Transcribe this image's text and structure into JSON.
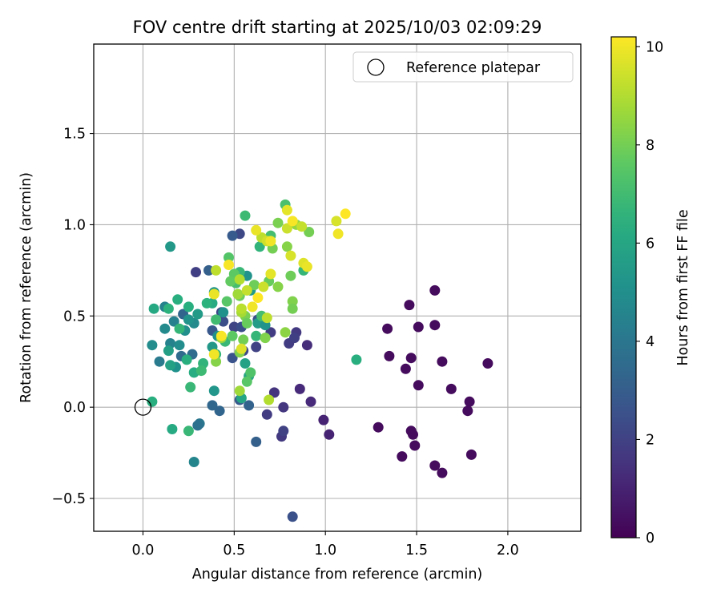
{
  "chart_data": {
    "type": "scatter",
    "title": "FOV centre drift starting at 2025/10/03 02:09:29",
    "xlabel": "Angular distance from reference (arcmin)",
    "ylabel": "Rotation from reference (arcmin)",
    "xlim": [
      -0.27,
      2.4
    ],
    "ylim": [
      -0.68,
      1.99
    ],
    "xticks": [
      0.0,
      0.5,
      1.0,
      1.5,
      2.0
    ],
    "xtick_labels": [
      "0.0",
      "0.5",
      "1.0",
      "1.5",
      "2.0"
    ],
    "yticks": [
      -0.5,
      0.0,
      0.5,
      1.0,
      1.5
    ],
    "ytick_labels": [
      "−0.5",
      "0.0",
      "0.5",
      "1.0",
      "1.5"
    ],
    "grid": true,
    "legend": {
      "position": "top-right",
      "entries": [
        "Reference platepar"
      ]
    },
    "reference_point": {
      "x": 0.0,
      "y": 0.0,
      "label": "Reference platepar"
    },
    "colorbar": {
      "label": "Hours from first FF file",
      "min": 0,
      "max": 10.2,
      "ticks": [
        0,
        2,
        4,
        6,
        8,
        10
      ],
      "tick_labels": [
        "0",
        "2",
        "4",
        "6",
        "8",
        "10"
      ],
      "colormap": [
        "#440154",
        "#472d7b",
        "#3b528b",
        "#2c728e",
        "#21918c",
        "#28ae80",
        "#5ec962",
        "#addc30",
        "#fde725"
      ]
    },
    "points": [
      {
        "x": 1.6,
        "y": 0.64,
        "c": 0.3
      },
      {
        "x": 1.46,
        "y": 0.56,
        "c": 0.3
      },
      {
        "x": 1.34,
        "y": 0.43,
        "c": 0.3
      },
      {
        "x": 1.51,
        "y": 0.44,
        "c": 0.3
      },
      {
        "x": 1.6,
        "y": 0.45,
        "c": 0.3
      },
      {
        "x": 1.35,
        "y": 0.28,
        "c": 0.3
      },
      {
        "x": 1.47,
        "y": 0.27,
        "c": 0.3
      },
      {
        "x": 1.44,
        "y": 0.21,
        "c": 0.3
      },
      {
        "x": 1.64,
        "y": 0.25,
        "c": 0.3
      },
      {
        "x": 1.89,
        "y": 0.24,
        "c": 0.3
      },
      {
        "x": 1.51,
        "y": 0.12,
        "c": 0.3
      },
      {
        "x": 1.69,
        "y": 0.1,
        "c": 0.3
      },
      {
        "x": 1.79,
        "y": 0.03,
        "c": 0.3
      },
      {
        "x": 1.78,
        "y": -0.02,
        "c": 0.3
      },
      {
        "x": 1.29,
        "y": -0.11,
        "c": 0.3
      },
      {
        "x": 1.47,
        "y": -0.13,
        "c": 0.3
      },
      {
        "x": 1.48,
        "y": -0.15,
        "c": 0.3
      },
      {
        "x": 1.49,
        "y": -0.21,
        "c": 0.3
      },
      {
        "x": 1.42,
        "y": -0.27,
        "c": 0.3
      },
      {
        "x": 1.8,
        "y": -0.26,
        "c": 0.3
      },
      {
        "x": 1.6,
        "y": -0.32,
        "c": 0.3
      },
      {
        "x": 1.64,
        "y": -0.36,
        "c": 0.3
      },
      {
        "x": 0.99,
        "y": -0.07,
        "c": 1.0
      },
      {
        "x": 1.02,
        "y": -0.15,
        "c": 1.0
      },
      {
        "x": 0.9,
        "y": 0.34,
        "c": 1.3
      },
      {
        "x": 0.86,
        "y": 0.1,
        "c": 1.2
      },
      {
        "x": 0.92,
        "y": 0.03,
        "c": 1.2
      },
      {
        "x": 0.72,
        "y": 0.08,
        "c": 1.5
      },
      {
        "x": 0.77,
        "y": 0.0,
        "c": 1.6
      },
      {
        "x": 0.68,
        "y": -0.04,
        "c": 1.8
      },
      {
        "x": 0.76,
        "y": -0.16,
        "c": 1.7
      },
      {
        "x": 0.77,
        "y": -0.13,
        "c": 2.0
      },
      {
        "x": 0.82,
        "y": -0.6,
        "c": 2.5
      },
      {
        "x": 0.84,
        "y": 0.41,
        "c": 1.7
      },
      {
        "x": 0.8,
        "y": 0.35,
        "c": 1.8
      },
      {
        "x": 0.83,
        "y": 0.38,
        "c": 1.9
      },
      {
        "x": 0.7,
        "y": 0.41,
        "c": 1.8
      },
      {
        "x": 0.63,
        "y": 0.48,
        "c": 2.5
      },
      {
        "x": 0.62,
        "y": 0.33,
        "c": 2.0
      },
      {
        "x": 0.53,
        "y": 0.95,
        "c": 2.2
      },
      {
        "x": 0.49,
        "y": 0.94,
        "c": 2.9
      },
      {
        "x": 0.29,
        "y": 0.74,
        "c": 1.9
      },
      {
        "x": 0.36,
        "y": 0.75,
        "c": 3.1
      },
      {
        "x": 0.43,
        "y": 0.52,
        "c": 2.2
      },
      {
        "x": 0.44,
        "y": 0.47,
        "c": 2.4
      },
      {
        "x": 0.38,
        "y": 0.42,
        "c": 2.8
      },
      {
        "x": 0.5,
        "y": 0.44,
        "c": 2.1
      },
      {
        "x": 0.54,
        "y": 0.44,
        "c": 2.4
      },
      {
        "x": 0.55,
        "y": 0.31,
        "c": 2.2
      },
      {
        "x": 0.49,
        "y": 0.27,
        "c": 2.6
      },
      {
        "x": 0.58,
        "y": 0.01,
        "c": 3.2
      },
      {
        "x": 0.53,
        "y": 0.04,
        "c": 2.9
      },
      {
        "x": 0.62,
        "y": -0.19,
        "c": 3.1
      },
      {
        "x": 0.27,
        "y": 0.29,
        "c": 3.6
      },
      {
        "x": 0.21,
        "y": 0.28,
        "c": 3.5
      },
      {
        "x": 0.22,
        "y": 0.51,
        "c": 3.3
      },
      {
        "x": 0.38,
        "y": 0.01,
        "c": 3.4
      },
      {
        "x": 0.42,
        "y": -0.02,
        "c": 3.3
      },
      {
        "x": 0.31,
        "y": -0.09,
        "c": 4.0
      },
      {
        "x": 0.3,
        "y": -0.1,
        "c": 3.8
      },
      {
        "x": 0.28,
        "y": -0.3,
        "c": 4.6
      },
      {
        "x": 0.12,
        "y": 0.55,
        "c": 4.5
      },
      {
        "x": 0.17,
        "y": 0.47,
        "c": 4.4
      },
      {
        "x": 0.12,
        "y": 0.43,
        "c": 4.8
      },
      {
        "x": 0.15,
        "y": 0.35,
        "c": 4.5
      },
      {
        "x": 0.2,
        "y": 0.34,
        "c": 4.9
      },
      {
        "x": 0.18,
        "y": 0.22,
        "c": 5.1
      },
      {
        "x": 0.09,
        "y": 0.25,
        "c": 4.2
      },
      {
        "x": 0.05,
        "y": 0.34,
        "c": 4.9
      },
      {
        "x": 0.23,
        "y": 0.42,
        "c": 5.0
      },
      {
        "x": 0.28,
        "y": 0.46,
        "c": 4.8
      },
      {
        "x": 0.25,
        "y": 0.48,
        "c": 5.2
      },
      {
        "x": 0.3,
        "y": 0.51,
        "c": 5.5
      },
      {
        "x": 0.39,
        "y": 0.63,
        "c": 5.3
      },
      {
        "x": 0.44,
        "y": 0.52,
        "c": 5.1
      },
      {
        "x": 0.41,
        "y": 0.39,
        "c": 5.0
      },
      {
        "x": 0.38,
        "y": 0.33,
        "c": 5.4
      },
      {
        "x": 0.57,
        "y": 0.72,
        "c": 5.2
      },
      {
        "x": 0.59,
        "y": 0.64,
        "c": 5.5
      },
      {
        "x": 0.52,
        "y": 0.73,
        "c": 5.8
      },
      {
        "x": 0.63,
        "y": 0.46,
        "c": 5.6
      },
      {
        "x": 0.67,
        "y": 0.45,
        "c": 5.2
      },
      {
        "x": 0.56,
        "y": 0.24,
        "c": 5.8
      },
      {
        "x": 0.58,
        "y": 0.17,
        "c": 5.9
      },
      {
        "x": 0.39,
        "y": 0.09,
        "c": 5.3
      },
      {
        "x": 0.54,
        "y": 0.05,
        "c": 6.0
      },
      {
        "x": 0.15,
        "y": 0.88,
        "c": 5.4
      },
      {
        "x": 0.14,
        "y": 0.31,
        "c": 5.7
      },
      {
        "x": 0.15,
        "y": 0.23,
        "c": 5.8
      },
      {
        "x": 0.16,
        "y": -0.12,
        "c": 6.2
      },
      {
        "x": 0.05,
        "y": 0.03,
        "c": 6.4
      },
      {
        "x": 0.06,
        "y": 0.54,
        "c": 6.1
      },
      {
        "x": 0.14,
        "y": 0.54,
        "c": 6.5
      },
      {
        "x": 0.19,
        "y": 0.59,
        "c": 6.4
      },
      {
        "x": 0.25,
        "y": 0.55,
        "c": 6.4
      },
      {
        "x": 0.2,
        "y": 0.43,
        "c": 6.7
      },
      {
        "x": 0.24,
        "y": 0.26,
        "c": 6.4
      },
      {
        "x": 0.28,
        "y": 0.19,
        "c": 6.3
      },
      {
        "x": 0.26,
        "y": 0.11,
        "c": 6.8
      },
      {
        "x": 0.33,
        "y": 0.24,
        "c": 6.6
      },
      {
        "x": 0.32,
        "y": 0.2,
        "c": 6.9
      },
      {
        "x": 0.25,
        "y": -0.13,
        "c": 6.8
      },
      {
        "x": 0.38,
        "y": 0.57,
        "c": 6.2
      },
      {
        "x": 0.35,
        "y": 0.57,
        "c": 6.5
      },
      {
        "x": 0.4,
        "y": 0.48,
        "c": 7.0
      },
      {
        "x": 0.4,
        "y": 0.29,
        "c": 6.7
      },
      {
        "x": 0.45,
        "y": 0.36,
        "c": 6.8
      },
      {
        "x": 0.51,
        "y": 0.68,
        "c": 7.1
      },
      {
        "x": 0.53,
        "y": 0.74,
        "c": 6.8
      },
      {
        "x": 0.56,
        "y": 1.05,
        "c": 6.9
      },
      {
        "x": 0.64,
        "y": 0.88,
        "c": 6.6
      },
      {
        "x": 0.7,
        "y": 0.94,
        "c": 7.1
      },
      {
        "x": 0.78,
        "y": 1.11,
        "c": 7.2
      },
      {
        "x": 0.88,
        "y": 0.75,
        "c": 6.7
      },
      {
        "x": 1.17,
        "y": 0.26,
        "c": 6.4
      },
      {
        "x": 0.62,
        "y": 0.39,
        "c": 6.7
      },
      {
        "x": 0.65,
        "y": 0.5,
        "c": 7.1
      },
      {
        "x": 0.59,
        "y": 0.19,
        "c": 7.3
      },
      {
        "x": 0.57,
        "y": 0.14,
        "c": 7.5
      },
      {
        "x": 0.47,
        "y": 0.82,
        "c": 7.4
      },
      {
        "x": 0.5,
        "y": 0.73,
        "c": 7.6
      },
      {
        "x": 0.48,
        "y": 0.69,
        "c": 7.7
      },
      {
        "x": 0.46,
        "y": 0.58,
        "c": 7.5
      },
      {
        "x": 0.53,
        "y": 0.61,
        "c": 7.9
      },
      {
        "x": 0.49,
        "y": 0.39,
        "c": 7.6
      },
      {
        "x": 0.56,
        "y": 0.5,
        "c": 8.1
      },
      {
        "x": 0.57,
        "y": 0.46,
        "c": 7.8
      },
      {
        "x": 0.55,
        "y": 0.37,
        "c": 8.0
      },
      {
        "x": 0.53,
        "y": 0.3,
        "c": 8.2
      },
      {
        "x": 0.61,
        "y": 0.67,
        "c": 7.9
      },
      {
        "x": 0.67,
        "y": 0.38,
        "c": 8.2
      },
      {
        "x": 0.69,
        "y": 0.69,
        "c": 7.8
      },
      {
        "x": 0.71,
        "y": 0.87,
        "c": 8.0
      },
      {
        "x": 0.74,
        "y": 1.01,
        "c": 8.1
      },
      {
        "x": 0.79,
        "y": 0.88,
        "c": 8.3
      },
      {
        "x": 0.81,
        "y": 0.72,
        "c": 7.9
      },
      {
        "x": 0.74,
        "y": 0.66,
        "c": 8.3
      },
      {
        "x": 0.82,
        "y": 0.58,
        "c": 8.2
      },
      {
        "x": 0.82,
        "y": 0.54,
        "c": 8.0
      },
      {
        "x": 0.78,
        "y": 0.41,
        "c": 8.4
      },
      {
        "x": 0.91,
        "y": 0.96,
        "c": 8.0
      },
      {
        "x": 0.84,
        "y": 1.0,
        "c": 8.5
      },
      {
        "x": 0.43,
        "y": 0.38,
        "c": 8.5
      },
      {
        "x": 0.4,
        "y": 0.25,
        "c": 8.3
      },
      {
        "x": 0.53,
        "y": 0.09,
        "c": 8.7
      },
      {
        "x": 0.69,
        "y": 0.04,
        "c": 9.0
      },
      {
        "x": 0.52,
        "y": 0.62,
        "c": 8.7
      },
      {
        "x": 0.54,
        "y": 0.52,
        "c": 8.8
      },
      {
        "x": 0.54,
        "y": 0.54,
        "c": 9.1
      },
      {
        "x": 0.4,
        "y": 0.75,
        "c": 9.2
      },
      {
        "x": 0.53,
        "y": 0.7,
        "c": 9.0
      },
      {
        "x": 0.57,
        "y": 0.64,
        "c": 9.3
      },
      {
        "x": 0.68,
        "y": 0.49,
        "c": 9.2
      },
      {
        "x": 0.66,
        "y": 0.66,
        "c": 9.4
      },
      {
        "x": 0.65,
        "y": 0.93,
        "c": 9.2
      },
      {
        "x": 0.68,
        "y": 0.91,
        "c": 9.5
      },
      {
        "x": 0.79,
        "y": 0.98,
        "c": 9.4
      },
      {
        "x": 0.87,
        "y": 0.99,
        "c": 9.3
      },
      {
        "x": 0.79,
        "y": 1.08,
        "c": 9.8
      },
      {
        "x": 0.81,
        "y": 0.83,
        "c": 9.6
      },
      {
        "x": 0.88,
        "y": 0.79,
        "c": 9.7
      },
      {
        "x": 0.9,
        "y": 0.77,
        "c": 9.9
      },
      {
        "x": 0.7,
        "y": 0.73,
        "c": 9.8
      },
      {
        "x": 0.62,
        "y": 0.97,
        "c": 9.9
      },
      {
        "x": 0.7,
        "y": 0.91,
        "c": 10.0
      },
      {
        "x": 0.82,
        "y": 1.02,
        "c": 10.1
      },
      {
        "x": 1.06,
        "y": 1.02,
        "c": 9.6
      },
      {
        "x": 1.07,
        "y": 0.95,
        "c": 10.0
      },
      {
        "x": 1.11,
        "y": 1.06,
        "c": 10.2
      },
      {
        "x": 0.47,
        "y": 0.78,
        "c": 10.1
      },
      {
        "x": 0.39,
        "y": 0.62,
        "c": 9.9
      },
      {
        "x": 0.43,
        "y": 0.39,
        "c": 10.1
      },
      {
        "x": 0.39,
        "y": 0.29,
        "c": 10.0
      },
      {
        "x": 0.54,
        "y": 0.32,
        "c": 9.7
      },
      {
        "x": 0.6,
        "y": 0.55,
        "c": 10.0
      },
      {
        "x": 0.63,
        "y": 0.6,
        "c": 10.2
      }
    ]
  }
}
